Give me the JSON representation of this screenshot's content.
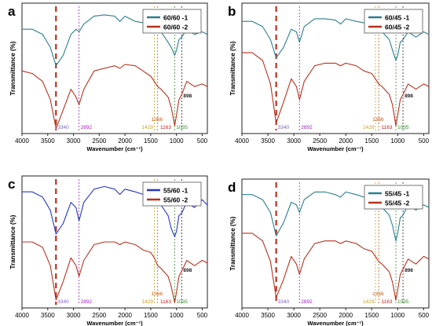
{
  "chart_data": [
    {
      "type": "line",
      "panel": "a",
      "xlabel": "Wavenumber (cm⁻¹)",
      "ylabel": "Transmittance (%)",
      "xlim": [
        4000,
        400
      ],
      "xticks": [
        4000,
        3500,
        3000,
        2500,
        2000,
        1500,
        1000,
        500
      ],
      "legend_position": "top-right",
      "series": [
        {
          "name": "60/60 -1",
          "color": "#2a7f8f",
          "x": [
            4000,
            3800,
            3600,
            3450,
            3340,
            3200,
            3050,
            2950,
            2892,
            2800,
            2600,
            2400,
            2200,
            2100,
            2000,
            1800,
            1650,
            1500,
            1429,
            1366,
            1300,
            1163,
            1100,
            1035,
            1000,
            950,
            898,
            800,
            650,
            500,
            400
          ],
          "y": [
            80,
            80,
            76,
            66,
            52,
            60,
            76,
            80,
            78,
            84,
            90,
            91,
            90,
            86,
            90,
            86,
            85,
            84,
            82,
            80,
            78,
            70,
            66,
            60,
            64,
            72,
            74,
            80,
            76,
            78,
            76
          ]
        },
        {
          "name": "60/60 -2",
          "color": "#b8321e",
          "x": [
            4000,
            3800,
            3600,
            3450,
            3340,
            3200,
            3050,
            2950,
            2892,
            2800,
            2600,
            2400,
            2200,
            2100,
            2000,
            1800,
            1650,
            1500,
            1429,
            1366,
            1300,
            1163,
            1100,
            1035,
            1000,
            950,
            898,
            800,
            650,
            500,
            400
          ],
          "y": [
            48,
            46,
            40,
            26,
            4,
            18,
            34,
            28,
            22,
            34,
            48,
            50,
            52,
            50,
            53,
            52,
            48,
            44,
            40,
            36,
            34,
            28,
            20,
            6,
            14,
            26,
            30,
            40,
            36,
            38,
            36
          ]
        }
      ],
      "annotations": [
        {
          "label": "3340",
          "x": 3340,
          "color": "#7b61c9",
          "line": "dashed-red"
        },
        {
          "label": "2892",
          "x": 2892,
          "color": "#a020c0",
          "line": "dotted"
        },
        {
          "label": "1429",
          "x": 1429,
          "color": "#c8a020",
          "line": "dotted"
        },
        {
          "label": "1366",
          "x": 1366,
          "color": "#c85a10",
          "line": "dotted"
        },
        {
          "label": "1163",
          "x": 1163,
          "color": "#c02020",
          "line": "none"
        },
        {
          "label": "1035",
          "x": 1035,
          "color": "#3a8a30",
          "line": "dotted"
        },
        {
          "label": "898",
          "x": 898,
          "color": "#222222",
          "line": "dotted"
        }
      ]
    },
    {
      "type": "line",
      "panel": "b",
      "xlabel": "Wavenumber (cm⁻¹)",
      "ylabel": "Transmittance (%)",
      "xlim": [
        4000,
        400
      ],
      "xticks": [
        4000,
        3500,
        3000,
        2500,
        2000,
        1500,
        1000,
        500
      ],
      "legend_position": "top-right",
      "series": [
        {
          "name": "60/45 -1",
          "color": "#2a7f8f",
          "x": [
            4000,
            3800,
            3600,
            3450,
            3340,
            3200,
            3050,
            2950,
            2892,
            2800,
            2600,
            2400,
            2200,
            2100,
            2000,
            1800,
            1650,
            1500,
            1429,
            1366,
            1300,
            1163,
            1100,
            1035,
            1000,
            950,
            898,
            800,
            650,
            500,
            400
          ],
          "y": [
            86,
            86,
            82,
            72,
            58,
            66,
            80,
            78,
            70,
            82,
            88,
            88,
            87,
            84,
            88,
            86,
            85,
            84,
            82,
            80,
            78,
            72,
            64,
            56,
            60,
            70,
            72,
            78,
            74,
            78,
            76
          ]
        },
        {
          "name": "60/45 -2",
          "color": "#b8321e",
          "x": [
            4000,
            3800,
            3600,
            3450,
            3340,
            3200,
            3050,
            2950,
            2892,
            2800,
            2600,
            2400,
            2200,
            2100,
            2000,
            1800,
            1650,
            1500,
            1429,
            1366,
            1300,
            1163,
            1100,
            1035,
            1000,
            950,
            898,
            800,
            650,
            500,
            400
          ],
          "y": [
            62,
            62,
            56,
            38,
            8,
            24,
            42,
            36,
            26,
            40,
            52,
            54,
            54,
            52,
            54,
            52,
            48,
            46,
            42,
            38,
            36,
            30,
            22,
            6,
            14,
            26,
            30,
            38,
            34,
            38,
            36
          ]
        }
      ],
      "annotations": [
        {
          "label": "3340",
          "x": 3340,
          "color": "#7b61c9",
          "line": "dashed-red"
        },
        {
          "label": "2892",
          "x": 2892,
          "color": "#a020c0",
          "line": "dotted"
        },
        {
          "label": "1429",
          "x": 1429,
          "color": "#c8a020",
          "line": "dotted"
        },
        {
          "label": "1366",
          "x": 1366,
          "color": "#c85a10",
          "line": "dotted"
        },
        {
          "label": "1163",
          "x": 1163,
          "color": "#c02020",
          "line": "none"
        },
        {
          "label": "1035",
          "x": 1035,
          "color": "#3a8a30",
          "line": "dotted"
        },
        {
          "label": "898",
          "x": 898,
          "color": "#222222",
          "line": "dotted"
        }
      ]
    },
    {
      "type": "line",
      "panel": "c",
      "xlabel": "Wavenumber (cm⁻¹)",
      "ylabel": "Transmittance (%)",
      "xlim": [
        4000,
        400
      ],
      "xticks": [
        4000,
        3500,
        3000,
        2500,
        2000,
        1500,
        1000,
        500
      ],
      "legend_position": "top-right",
      "series": [
        {
          "name": "55/60 -1",
          "color": "#2436c8",
          "x": [
            4000,
            3800,
            3600,
            3450,
            3340,
            3200,
            3050,
            2950,
            2892,
            2800,
            2600,
            2400,
            2200,
            2100,
            2000,
            1800,
            1650,
            1500,
            1429,
            1366,
            1300,
            1163,
            1100,
            1035,
            1000,
            950,
            898,
            800,
            650,
            500,
            400
          ],
          "y": [
            88,
            88,
            84,
            74,
            56,
            64,
            80,
            76,
            66,
            80,
            90,
            92,
            90,
            86,
            90,
            88,
            86,
            84,
            82,
            80,
            78,
            70,
            60,
            54,
            58,
            70,
            72,
            80,
            76,
            82,
            78
          ]
        },
        {
          "name": "55/60 -2",
          "color": "#b8321e",
          "x": [
            4000,
            3800,
            3600,
            3450,
            3340,
            3200,
            3050,
            2950,
            2892,
            2800,
            2600,
            2400,
            2200,
            2100,
            2000,
            1800,
            1650,
            1500,
            1429,
            1366,
            1300,
            1163,
            1100,
            1035,
            1000,
            950,
            898,
            800,
            650,
            500,
            400
          ],
          "y": [
            50,
            50,
            46,
            32,
            6,
            20,
            38,
            32,
            24,
            36,
            48,
            50,
            50,
            48,
            50,
            48,
            44,
            42,
            38,
            32,
            30,
            24,
            16,
            4,
            12,
            24,
            28,
            36,
            32,
            36,
            34
          ]
        }
      ],
      "annotations": [
        {
          "label": "3340",
          "x": 3340,
          "color": "#7b61c9",
          "line": "dashed-red"
        },
        {
          "label": "2892",
          "x": 2892,
          "color": "#a020c0",
          "line": "dotted"
        },
        {
          "label": "1429",
          "x": 1429,
          "color": "#c8a020",
          "line": "dotted"
        },
        {
          "label": "1366",
          "x": 1366,
          "color": "#c85a10",
          "line": "dotted"
        },
        {
          "label": "1163",
          "x": 1163,
          "color": "#c02020",
          "line": "none"
        },
        {
          "label": "1035",
          "x": 1035,
          "color": "#3a8a30",
          "line": "dotted"
        },
        {
          "label": "898",
          "x": 898,
          "color": "#222222",
          "line": "dotted"
        }
      ]
    },
    {
      "type": "line",
      "panel": "d",
      "xlabel": "Wavenumber (cm⁻¹)",
      "ylabel": "Transmittance (%)",
      "xlim": [
        4000,
        400
      ],
      "xticks": [
        4000,
        3500,
        3000,
        2500,
        2000,
        1500,
        1000,
        500
      ],
      "legend_position": "top-right",
      "series": [
        {
          "name": "55/45 -1",
          "color": "#2a7f8f",
          "x": [
            4000,
            3800,
            3600,
            3450,
            3340,
            3200,
            3050,
            2950,
            2892,
            2800,
            2600,
            2400,
            2200,
            2100,
            2000,
            1800,
            1650,
            1500,
            1429,
            1366,
            1300,
            1163,
            1100,
            1035,
            1000,
            950,
            898,
            800,
            650,
            500,
            400
          ],
          "y": [
            88,
            88,
            84,
            74,
            56,
            66,
            82,
            80,
            74,
            84,
            90,
            90,
            88,
            86,
            90,
            88,
            86,
            84,
            82,
            80,
            78,
            72,
            64,
            52,
            58,
            70,
            72,
            80,
            76,
            80,
            78
          ]
        },
        {
          "name": "55/45 -2",
          "color": "#b8321e",
          "x": [
            4000,
            3800,
            3600,
            3450,
            3340,
            3200,
            3050,
            2950,
            2892,
            2800,
            2600,
            2400,
            2200,
            2100,
            2000,
            1800,
            1650,
            1500,
            1429,
            1366,
            1300,
            1163,
            1100,
            1035,
            1000,
            950,
            898,
            800,
            650,
            500,
            400
          ],
          "y": [
            58,
            58,
            52,
            36,
            8,
            22,
            40,
            34,
            26,
            38,
            50,
            52,
            52,
            50,
            52,
            50,
            46,
            44,
            40,
            36,
            34,
            28,
            20,
            6,
            14,
            26,
            30,
            38,
            34,
            40,
            38
          ]
        }
      ],
      "annotations": [
        {
          "label": "3340",
          "x": 3340,
          "color": "#7b61c9",
          "line": "dashed-red"
        },
        {
          "label": "2892",
          "x": 2892,
          "color": "#a020c0",
          "line": "dotted"
        },
        {
          "label": "1429",
          "x": 1429,
          "color": "#c8a020",
          "line": "dotted"
        },
        {
          "label": "1366",
          "x": 1366,
          "color": "#c85a10",
          "line": "dotted"
        },
        {
          "label": "1163",
          "x": 1163,
          "color": "#c02020",
          "line": "none"
        },
        {
          "label": "1035",
          "x": 1035,
          "color": "#3a8a30",
          "line": "dotted"
        },
        {
          "label": "898",
          "x": 898,
          "color": "#222222",
          "line": "dotted"
        }
      ]
    }
  ]
}
